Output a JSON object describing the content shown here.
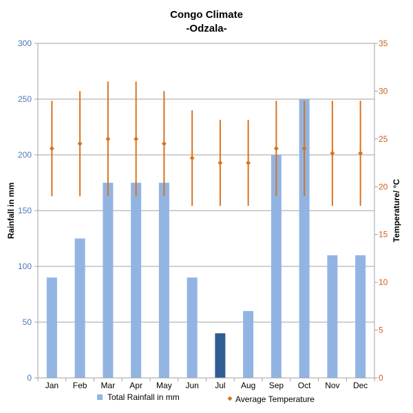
{
  "chart_data": {
    "type": "bar",
    "title": "Congo Climate",
    "subtitle": "-Odzala-",
    "categories": [
      "Jan",
      "Feb",
      "Mar",
      "Apr",
      "May",
      "Jun",
      "Jul",
      "Aug",
      "Sep",
      "Oct",
      "Nov",
      "Dec"
    ],
    "series": [
      {
        "name": "Total Rainfall in mm",
        "type": "bar",
        "axis": "left",
        "values": [
          90,
          125,
          175,
          175,
          175,
          90,
          40,
          60,
          200,
          250,
          110,
          110
        ],
        "highlight_index": 6
      },
      {
        "name": "Average Temperature",
        "type": "scatter",
        "axis": "right",
        "values": [
          24,
          24.5,
          25,
          25,
          24.5,
          23,
          22.5,
          22.5,
          24,
          24,
          23.5,
          23.5
        ],
        "low": [
          19,
          19,
          19,
          19,
          19,
          18,
          18,
          18,
          19,
          19,
          18,
          18
        ],
        "high": [
          29,
          30,
          31,
          31,
          30,
          28,
          27,
          27,
          29,
          29,
          29,
          29
        ]
      }
    ],
    "ylabel": "Rainfall in mm",
    "ylabel_right": "Temperature/ °C",
    "ylim": [
      0,
      300
    ],
    "ylim_right": [
      0,
      35
    ],
    "yticks": [
      0,
      50,
      100,
      150,
      200,
      250,
      300
    ],
    "yticks_right": [
      0,
      5,
      10,
      15,
      20,
      25,
      30,
      35
    ],
    "grid": true,
    "legend": "bottom",
    "colors": {
      "bar": "#92b4e3",
      "bar_highlight": "#325d94",
      "temp": "#d8721f",
      "grid": "#a0a0a0",
      "left_tick": "#4a7ab8",
      "right_tick": "#c8601a"
    }
  }
}
